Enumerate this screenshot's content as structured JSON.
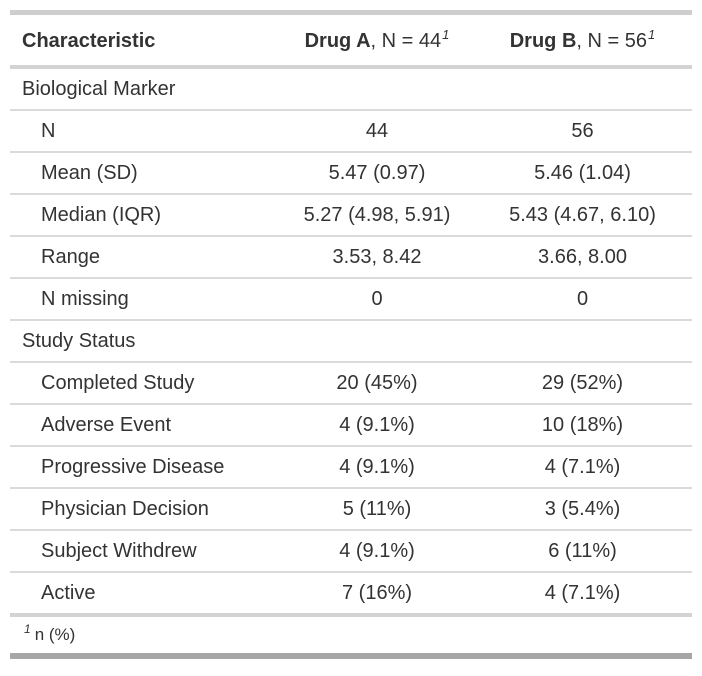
{
  "colors": {
    "text": "#333333",
    "border_top": "#cecece",
    "border_header_bottom": "#d3d3d3",
    "border_row_separator": "#dbdbdb",
    "border_above_footnote": "#d3d3d3",
    "border_bottom": "#a6a6a6",
    "background": "#ffffff"
  },
  "table": {
    "header": {
      "characteristic": "Characteristic",
      "drug_a": {
        "name": "Drug A",
        "rest": ", N = 44",
        "footnote_mark": "1"
      },
      "drug_b": {
        "name": "Drug B",
        "rest": ", N = 56",
        "footnote_mark": "1"
      }
    },
    "rows": [
      {
        "type": "section",
        "label": "Biological Marker"
      },
      {
        "type": "data",
        "label": "N",
        "drug_a": "44",
        "drug_b": "56"
      },
      {
        "type": "data",
        "label": "Mean (SD)",
        "drug_a": "5.47 (0.97)",
        "drug_b": "5.46 (1.04)"
      },
      {
        "type": "data",
        "label": "Median (IQR)",
        "drug_a": "5.27 (4.98, 5.91)",
        "drug_b": "5.43 (4.67, 6.10)"
      },
      {
        "type": "data",
        "label": "Range",
        "drug_a": "3.53, 8.42",
        "drug_b": "3.66, 8.00"
      },
      {
        "type": "data",
        "label": "N missing",
        "drug_a": "0",
        "drug_b": "0"
      },
      {
        "type": "section",
        "label": "Study Status"
      },
      {
        "type": "data",
        "label": "Completed Study",
        "drug_a": "20 (45%)",
        "drug_b": "29 (52%)"
      },
      {
        "type": "data",
        "label": "Adverse Event",
        "drug_a": "4 (9.1%)",
        "drug_b": "10 (18%)"
      },
      {
        "type": "data",
        "label": "Progressive Disease",
        "drug_a": "4 (9.1%)",
        "drug_b": "4 (7.1%)"
      },
      {
        "type": "data",
        "label": "Physician Decision",
        "drug_a": "5 (11%)",
        "drug_b": "3 (5.4%)"
      },
      {
        "type": "data",
        "label": "Subject Withdrew",
        "drug_a": "4 (9.1%)",
        "drug_b": "6 (11%)"
      },
      {
        "type": "data",
        "label": "Active",
        "drug_a": "7 (16%)",
        "drug_b": "4 (7.1%)"
      }
    ],
    "footnote": {
      "mark": "1",
      "text": "n (%)"
    }
  }
}
